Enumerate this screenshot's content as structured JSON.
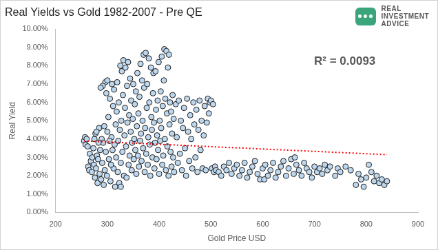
{
  "chart_data": {
    "type": "scatter",
    "title": "Real Yields vs Gold 1982-2007 - Pre QE",
    "x_label": "Gold Price USD",
    "y_label": "Real Yield",
    "annotations": [
      "R² = 0.0093"
    ],
    "logo": [
      "REAL",
      "INVESTMENT",
      "ADVICE"
    ],
    "xlim": [
      200,
      900
    ],
    "xticks": [
      200,
      300,
      400,
      500,
      600,
      700,
      800,
      900
    ],
    "ylim": [
      0,
      10
    ],
    "yticks": [
      {
        "value": 0,
        "label": "0.00%"
      },
      {
        "value": 1,
        "label": "1.00%"
      },
      {
        "value": 2,
        "label": "2.00%"
      },
      {
        "value": 3,
        "label": "3.00%"
      },
      {
        "value": 4,
        "label": "4.00%"
      },
      {
        "value": 5,
        "label": "5.00%"
      },
      {
        "value": 6,
        "label": "6.00%"
      },
      {
        "value": 7,
        "label": "7.00%"
      },
      {
        "value": 8,
        "label": "8.00%"
      },
      {
        "value": 9,
        "label": "9.00%"
      },
      {
        "value": 10,
        "label": "10.00%"
      }
    ],
    "grid": false,
    "series": [
      {
        "type": "scatter",
        "color": "#bdd7ee",
        "marker": "circle",
        "x": [
          255,
          257,
          258,
          260,
          262,
          263,
          265,
          266,
          268,
          270,
          271,
          273,
          274,
          276,
          277,
          278,
          280,
          281,
          282,
          284,
          285,
          286,
          288,
          289,
          290,
          292,
          293,
          294,
          295,
          297,
          298,
          296,
          300,
          291,
          287,
          299,
          300,
          283,
          279,
          275,
          302,
          303,
          305,
          306,
          308,
          309,
          310,
          311,
          312,
          313,
          315,
          316,
          317,
          318,
          319,
          320,
          321,
          322,
          323,
          324,
          325,
          326,
          327,
          328,
          329,
          330,
          331,
          332,
          333,
          334,
          335,
          336,
          337,
          338,
          339,
          340,
          341,
          342,
          343,
          344,
          326,
          314,
          307,
          304,
          345,
          346,
          347,
          348,
          349,
          350,
          351,
          352,
          353,
          354,
          355,
          356,
          357,
          358,
          359,
          360,
          361,
          362,
          363,
          364,
          365,
          366,
          367,
          368,
          369,
          370,
          371,
          372,
          373,
          374,
          375,
          376,
          377,
          378,
          379,
          380,
          381,
          382,
          383,
          384,
          385,
          386,
          387,
          388,
          389,
          390,
          391,
          392,
          393,
          394,
          395,
          396,
          397,
          398,
          399,
          400,
          401,
          402,
          403,
          404,
          405,
          406,
          407,
          408,
          409,
          410,
          411,
          412,
          413,
          414,
          415,
          416,
          417,
          418,
          419,
          420,
          421,
          422,
          423,
          424,
          425,
          426,
          427,
          428,
          429,
          432,
          434,
          436,
          438,
          440,
          442,
          444,
          446,
          448,
          450,
          452,
          454,
          456,
          458,
          460,
          462,
          464,
          466,
          468,
          470,
          472,
          474,
          476,
          478,
          480,
          482,
          484,
          486,
          488,
          490,
          492,
          494,
          496,
          498,
          500,
          502,
          504,
          506,
          508,
          510,
          515,
          520,
          525,
          530,
          535,
          540,
          545,
          550,
          555,
          560,
          565,
          570,
          575,
          580,
          585,
          590,
          595,
          600,
          605,
          610,
          615,
          620,
          625,
          630,
          635,
          640,
          645,
          650,
          655,
          660,
          665,
          670,
          675,
          680,
          685,
          690,
          695,
          700,
          603,
          662,
          705,
          710,
          715,
          720,
          725,
          730,
          740,
          745,
          750,
          760,
          770,
          780,
          785,
          790,
          795,
          800,
          805,
          810,
          815,
          820,
          825,
          830,
          835,
          840
        ],
        "values": [
          3.9,
          4.1,
          3.7,
          4.0,
          3.6,
          2.5,
          2.3,
          3.2,
          2.8,
          2.2,
          3.0,
          3.5,
          2.6,
          1.9,
          4.3,
          2.4,
          3.1,
          1.6,
          2.9,
          4.6,
          2.1,
          3.4,
          1.8,
          4.0,
          2.7,
          3.8,
          1.5,
          4.7,
          2.3,
          3.3,
          6.5,
          7.1,
          7.2,
          6.9,
          6.8,
          2.0,
          4.4,
          3.8,
          4.4,
          4.0,
          5.2,
          2.9,
          6.2,
          1.7,
          4.1,
          7.0,
          3.4,
          5.8,
          2.4,
          6.7,
          1.4,
          4.8,
          3.0,
          5.5,
          7.1,
          2.2,
          3.9,
          6.0,
          1.6,
          4.5,
          8.0,
          2.7,
          5.0,
          7.7,
          3.3,
          6.4,
          8.3,
          2.0,
          4.2,
          5.7,
          7.9,
          3.6,
          1.9,
          6.9,
          4.9,
          8.2,
          2.6,
          5.3,
          3.1,
          7.3,
          1.4,
          3.7,
          2.6,
          3.9,
          4.4,
          6.1,
          2.3,
          3.8,
          5.1,
          7.0,
          2.9,
          4.0,
          5.9,
          3.4,
          6.6,
          2.1,
          4.7,
          7.6,
          3.1,
          5.4,
          2.5,
          6.3,
          3.9,
          8.1,
          4.3,
          2.8,
          7.2,
          5.0,
          3.5,
          8.6,
          6.8,
          2.2,
          4.6,
          8.7,
          3.2,
          5.7,
          7.0,
          2.6,
          4.1,
          8.4,
          6.0,
          3.7,
          2.0,
          7.9,
          5.2,
          4.5,
          3.0,
          6.5,
          7.6,
          4.9,
          2.4,
          3.8,
          7.7,
          5.6,
          2.9,
          4.2,
          6.1,
          3.4,
          8.2,
          2.1,
          5.0,
          3.9,
          6.6,
          4.6,
          8.5,
          2.6,
          5.8,
          3.1,
          7.2,
          8.9,
          4.0,
          6.2,
          2.3,
          8.8,
          5.4,
          3.6,
          7.9,
          2.0,
          8.6,
          4.8,
          6.0,
          3.3,
          5.5,
          2.5,
          4.3,
          6.4,
          3.0,
          5.1,
          2.2,
          5.9,
          4.1,
          2.7,
          6.1,
          3.2,
          5.0,
          2.3,
          4.6,
          5.7,
          3.5,
          2.0,
          6.2,
          4.4,
          2.8,
          5.3,
          4.0,
          2.4,
          6.0,
          4.8,
          3.0,
          5.6,
          2.2,
          4.5,
          6.1,
          3.4,
          5.0,
          2.4,
          4.2,
          5.8,
          2.3,
          4.9,
          6.2,
          5.4,
          6.0,
          6.1,
          2.4,
          5.9,
          2.2,
          2.5,
          2.3,
          2.2,
          2.0,
          2.5,
          2.3,
          2.7,
          2.1,
          2.4,
          2.6,
          2.0,
          2.3,
          2.7,
          1.9,
          2.2,
          2.5,
          2.8,
          2.1,
          1.8,
          2.4,
          2.6,
          2.0,
          2.3,
          2.7,
          1.9,
          2.2,
          2.5,
          2.8,
          2.0,
          2.4,
          2.9,
          2.1,
          2.6,
          2.3,
          2.0,
          2.7,
          2.4,
          2.2,
          1.9,
          2.5,
          1.8,
          3.0,
          2.2,
          2.4,
          2.1,
          2.6,
          2.3,
          2.5,
          2.0,
          2.4,
          2.2,
          2.5,
          2.3,
          1.5,
          2.1,
          1.8,
          1.4,
          1.9,
          2.6,
          2.2,
          1.7,
          2.0,
          1.6,
          1.8,
          1.5,
          1.7
        ]
      },
      {
        "type": "line",
        "color": "#ff0000",
        "line_style": "dotted",
        "x": [
          255,
          840
        ],
        "values": [
          3.9,
          3.15
        ]
      }
    ]
  }
}
